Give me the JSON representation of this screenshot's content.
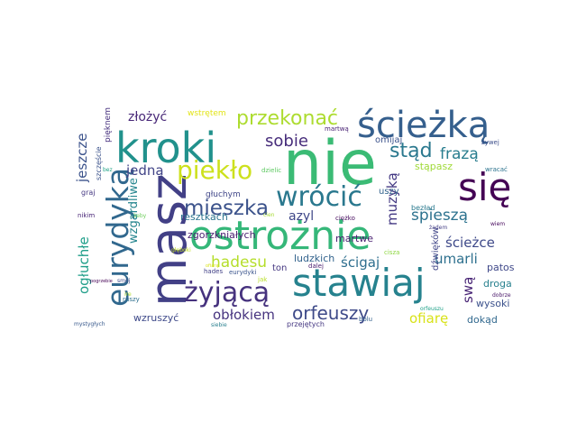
{
  "words": [
    {
      "text": "nie",
      "color": "#3bbb75"
    },
    {
      "text": "masz",
      "color": "#424086"
    },
    {
      "text": "kroki",
      "color": "#21918c"
    },
    {
      "text": "ścieżką",
      "color": "#355f8d"
    },
    {
      "text": "się",
      "color": "#440154"
    },
    {
      "text": "ostrożnie",
      "color": "#35b779"
    },
    {
      "text": "stawiaj",
      "color": "#26828e"
    },
    {
      "text": "eurydyką",
      "color": "#31688e"
    },
    {
      "text": "piekło",
      "color": "#cde11d"
    },
    {
      "text": "wrócić",
      "color": "#2a788e"
    },
    {
      "text": "przekonać",
      "color": "#addc30"
    },
    {
      "text": "żyjącą",
      "color": "#46327e"
    },
    {
      "text": "mieszka",
      "color": "#3b528b"
    },
    {
      "text": "stąd",
      "color": "#2a788e"
    },
    {
      "text": "orfeuszy",
      "color": "#3e4a89"
    },
    {
      "text": "sobie",
      "color": "#472d7b"
    },
    {
      "text": "hadesu",
      "color": "#b5de2b"
    },
    {
      "text": "jeszcze",
      "color": "#3b528b"
    },
    {
      "text": "złożyć",
      "color": "#482878"
    },
    {
      "text": "jedną",
      "color": "#414487"
    },
    {
      "text": "frazą",
      "color": "#287d8e"
    },
    {
      "text": "muzyką",
      "color": "#443983"
    },
    {
      "text": "spieszą",
      "color": "#2c728e"
    },
    {
      "text": "ścieżce",
      "color": "#3e4989"
    },
    {
      "text": "umarli",
      "color": "#2d708e"
    },
    {
      "text": "ścigaj",
      "color": "#2e6e8e"
    },
    {
      "text": "obłokiem",
      "color": "#46337f"
    },
    {
      "text": "ofiarę",
      "color": "#d8e219"
    },
    {
      "text": "ogłuchłe",
      "color": "#1f9e89"
    },
    {
      "text": "wzgardliwe",
      "color": "#25858e"
    },
    {
      "text": "azyl",
      "color": "#3f4788"
    },
    {
      "text": "swą",
      "color": "#482475"
    },
    {
      "text": "stąpasz",
      "color": "#a0da39"
    },
    {
      "text": "zgorzkniałych",
      "color": "#481d6f"
    },
    {
      "text": "resztkach",
      "color": "#2b748e"
    },
    {
      "text": "martwe",
      "color": "#481f70"
    },
    {
      "text": "ludzkich",
      "color": "#33638d"
    },
    {
      "text": "wzruszyć",
      "color": "#3e4989"
    },
    {
      "text": "droga",
      "color": "#27808e"
    },
    {
      "text": "patos",
      "color": "#3f4889"
    },
    {
      "text": "wysoki",
      "color": "#3b518b"
    },
    {
      "text": "dokąd",
      "color": "#31688e"
    },
    {
      "text": "uszy",
      "color": "#33638d"
    },
    {
      "text": "omijaj",
      "color": "#3b528b"
    },
    {
      "text": "dźwięków",
      "color": "#404688"
    },
    {
      "text": "ton",
      "color": "#453781"
    },
    {
      "text": "szczęście",
      "color": "#3b528b"
    },
    {
      "text": "pięknem",
      "color": "#46307e"
    },
    {
      "text": "wstrętem",
      "color": "#e2e418"
    },
    {
      "text": "martwą",
      "color": "#482173"
    },
    {
      "text": "żywej",
      "color": "#3d4e8a"
    },
    {
      "text": "głuchym",
      "color": "#404688"
    },
    {
      "text": "dzielic",
      "color": "#5ec962"
    },
    {
      "text": "wracać",
      "color": "#2c738e"
    },
    {
      "text": "bezład",
      "color": "#29798e"
    },
    {
      "text": "graj",
      "color": "#453882"
    },
    {
      "text": "nikim",
      "color": "#482576"
    },
    {
      "text": "żeby",
      "color": "#6ccd5a"
    },
    {
      "text": "ciężko",
      "color": "#460b5e"
    },
    {
      "text": "żadem",
      "color": "#433e85"
    },
    {
      "text": "cisza",
      "color": "#8fd744"
    },
    {
      "text": "głęboki",
      "color": "#c2df23"
    },
    {
      "text": "hades",
      "color": "#424186"
    },
    {
      "text": "eurydyki",
      "color": "#3a548c"
    },
    {
      "text": "dalej",
      "color": "#481c6e"
    },
    {
      "text": "jak",
      "color": "#b8de29"
    },
    {
      "text": "smój",
      "color": "#3e4a89"
    },
    {
      "text": "pogrzebie",
      "color": "#440154"
    },
    {
      "text": "ruszy",
      "color": "#2e6f8e"
    },
    {
      "text": "bolu",
      "color": "#34608d"
    },
    {
      "text": "przejętych",
      "color": "#453781"
    },
    {
      "text": "siebie",
      "color": "#277f8e"
    },
    {
      "text": "dobrze",
      "color": "#481668"
    },
    {
      "text": "orfeuszu",
      "color": "#1fa188"
    },
    {
      "text": "mystygłych",
      "color": "#38598c"
    },
    {
      "text": "bez",
      "color": "#20a386"
    },
    {
      "text": "wiem",
      "color": "#46085c"
    },
    {
      "text": "cien",
      "color": "#a8db34"
    },
    {
      "text": "ire",
      "color": "#b0dd2f"
    },
    {
      "text": "ofiarą",
      "color": "#dae319"
    }
  ]
}
